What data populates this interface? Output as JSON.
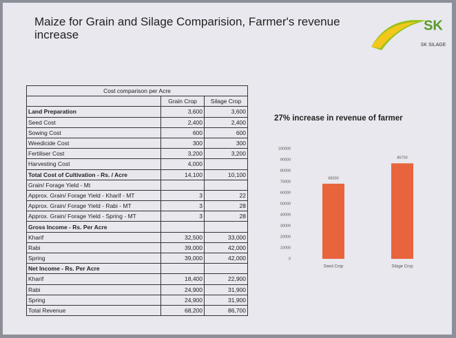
{
  "header": {
    "title": "Maize for Grain and Silage Comparision, Farmer's revenue increase",
    "logo": {
      "mark": "SK",
      "text": "SK SILAGE"
    }
  },
  "table": {
    "caption": "Cost comparison per Acre",
    "columns": [
      null,
      "Grain Crop",
      "Silage Crop"
    ],
    "rows": [
      {
        "cells": [
          "Land Preparation",
          "3,600",
          "3,600"
        ],
        "bold": true
      },
      {
        "cells": [
          "Seed Cost",
          "2,400",
          "2,400"
        ]
      },
      {
        "cells": [
          "Sowing Cost",
          "600",
          "600"
        ]
      },
      {
        "cells": [
          "Weedicide Cost",
          "300",
          "300"
        ]
      },
      {
        "cells": [
          "Fertiliser Cost",
          "3,200",
          "3,200"
        ]
      },
      {
        "cells": [
          "Harvesting Cost",
          "4,000",
          null
        ]
      },
      {
        "cells": [
          "Total Cost of Cultivation - Rs. / Acre",
          "14,100",
          "10,100"
        ],
        "bold": true
      },
      {
        "cells": [
          "Grain/ Forage Yield - Mt",
          null,
          null
        ]
      },
      {
        "cells": [
          "Approx. Grain/ Forage Yield - Kharif - MT",
          "3",
          "22"
        ]
      },
      {
        "cells": [
          "Approx. Grain/ Forage Yield - Rabi - MT",
          "3",
          "28"
        ]
      },
      {
        "cells": [
          "Approx. Grain/ Forage Yield - Spring - MT",
          "3",
          "28"
        ]
      },
      {
        "cells": [
          "Gross Income - Rs. Per Acre",
          null,
          null
        ],
        "bold": true
      },
      {
        "cells": [
          "Kharif",
          "32,500",
          "33,000"
        ]
      },
      {
        "cells": [
          "Rabi",
          "39,000",
          "42,000"
        ]
      },
      {
        "cells": [
          "Spring",
          "39,000",
          "42,000"
        ]
      },
      {
        "cells": [
          "Net Income - Rs. Per Acre",
          null,
          null
        ],
        "bold": true
      },
      {
        "cells": [
          "Kharif",
          "18,400",
          "22,900"
        ]
      },
      {
        "cells": [
          "Rabi",
          "24,900",
          "31,900"
        ]
      },
      {
        "cells": [
          "Spring",
          "24,900",
          "31,900"
        ]
      },
      {
        "cells": [
          "Total Revenue",
          "68,200",
          "86,700"
        ]
      }
    ]
  },
  "chart_data": {
    "type": "bar",
    "title": "27% increase in revenue of farmer",
    "categories": [
      "Seed Crop",
      "Silage Crop"
    ],
    "values": [
      68200,
      86700
    ],
    "color": "#e8643c",
    "ylim": [
      0,
      100000
    ],
    "yticks": [
      0,
      10000,
      20000,
      30000,
      40000,
      50000,
      60000,
      70000,
      80000,
      90000,
      100000
    ]
  }
}
